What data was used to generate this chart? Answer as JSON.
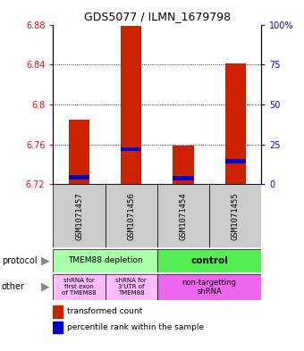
{
  "title": "GDS5077 / ILMN_1679798",
  "samples": [
    "GSM1071457",
    "GSM1071456",
    "GSM1071454",
    "GSM1071455"
  ],
  "transformed_counts": [
    6.785,
    6.879,
    6.759,
    6.841
  ],
  "percentile_values": [
    6.727,
    6.755,
    6.726,
    6.743
  ],
  "ylim_left": [
    6.72,
    6.88
  ],
  "yticks_left": [
    6.72,
    6.76,
    6.8,
    6.84,
    6.88
  ],
  "yticks_right": [
    0,
    25,
    50,
    75,
    100
  ],
  "grid_lines": [
    6.76,
    6.8,
    6.84
  ],
  "bar_color": "#cc2200",
  "percentile_color": "#0000cc",
  "protocol_labels": [
    "TMEM88 depletion",
    "control"
  ],
  "protocol_colors": [
    "#aaffaa",
    "#55ee55"
  ],
  "other_labels": [
    "shRNA for\nfirst exon\nof TMEM88",
    "shRNA for\n3'UTR of\nTMEM88",
    "non-targetting\nshRNA"
  ],
  "other_colors": [
    "#ffbbff",
    "#ffbbff",
    "#ee66ee"
  ],
  "sample_bg_color": "#cccccc",
  "legend_red_label": "transformed count",
  "legend_blue_label": "percentile rank within the sample",
  "bar_width": 0.4
}
